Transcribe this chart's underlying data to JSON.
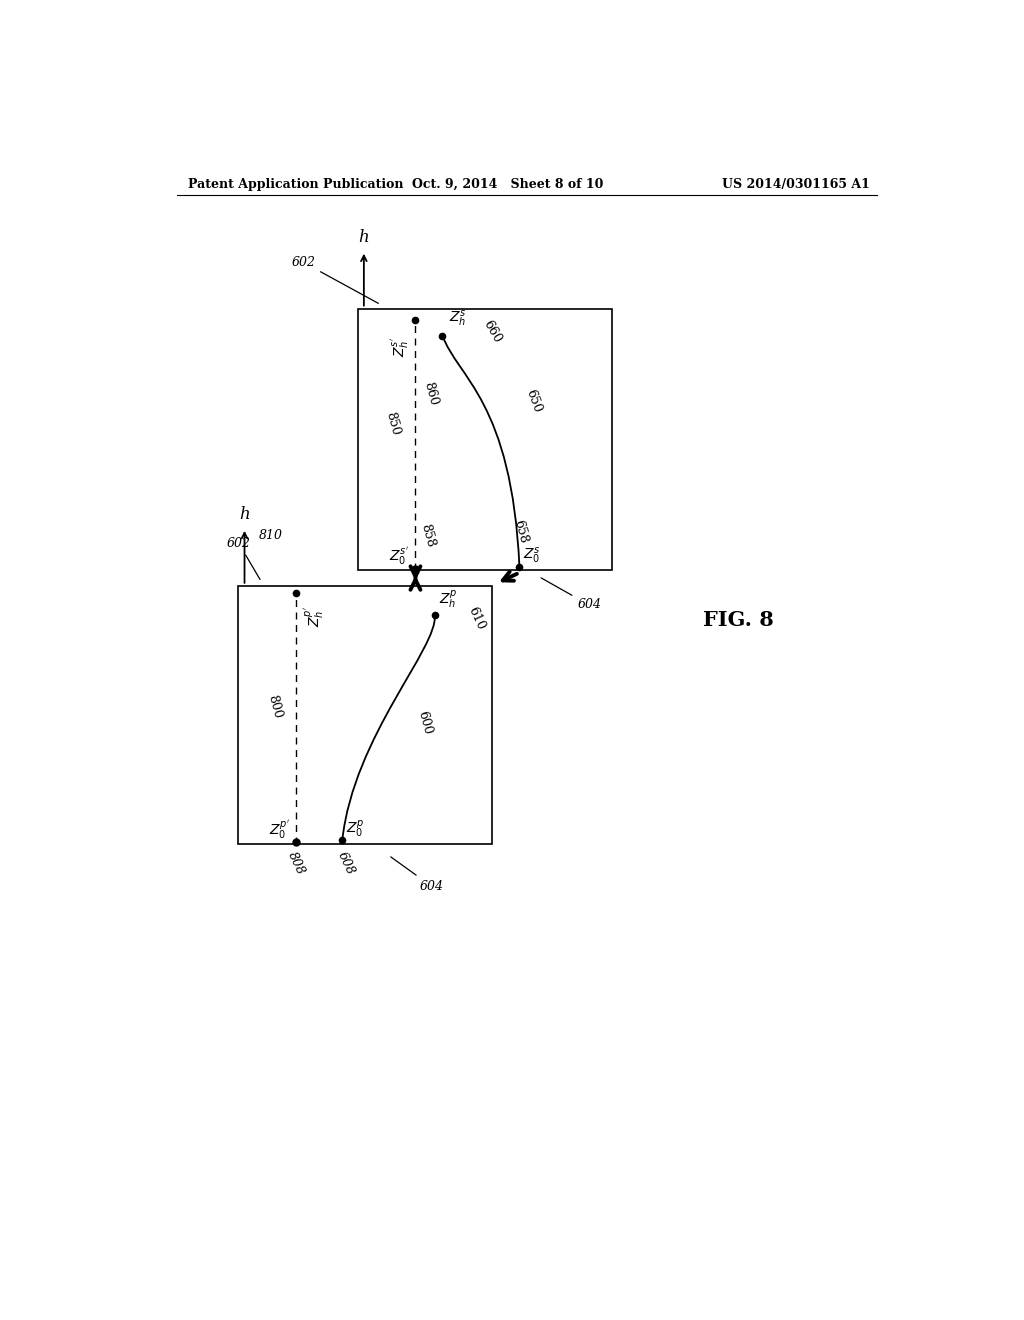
{
  "header_left": "Patent Application Publication",
  "header_mid": "Oct. 9, 2014   Sheet 8 of 10",
  "header_right": "US 2014/0301165 A1",
  "fig_label": "FIG. 8",
  "bg_color": "#ffffff",
  "line_color": "#000000"
}
